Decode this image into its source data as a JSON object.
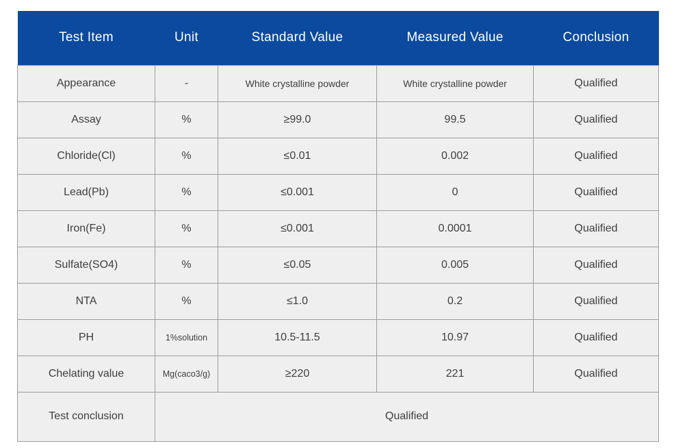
{
  "table": {
    "headers": {
      "item": "Test Item",
      "unit": "Unit",
      "standard": "Standard Value",
      "measured": "Measured Value",
      "conclusion": "Conclusion"
    },
    "rows": [
      {
        "item": "Appearance",
        "unit": "-",
        "standard": "White crystalline powder",
        "measured": "White crystalline powder",
        "conclusion": "Qualified"
      },
      {
        "item": "Assay",
        "unit": "%",
        "standard": "≥99.0",
        "measured": "99.5",
        "conclusion": "Qualified"
      },
      {
        "item": "Chloride(Cl)",
        "unit": "%",
        "standard": "≤0.01",
        "measured": "0.002",
        "conclusion": "Qualified"
      },
      {
        "item": "Lead(Pb)",
        "unit": "%",
        "standard": "≤0.001",
        "measured": "0",
        "conclusion": "Qualified"
      },
      {
        "item": "Iron(Fe)",
        "unit": "%",
        "standard": "≤0.001",
        "measured": "0.0001",
        "conclusion": "Qualified"
      },
      {
        "item": "Sulfate(SO4)",
        "unit": "%",
        "standard": "≤0.05",
        "measured": "0.005",
        "conclusion": "Qualified"
      },
      {
        "item": "NTA",
        "unit": "%",
        "standard": "≤1.0",
        "measured": "0.2",
        "conclusion": "Qualified"
      },
      {
        "item": "PH",
        "unit": "1%solution",
        "standard": "10.5-11.5",
        "measured": "10.97",
        "conclusion": "Qualified"
      },
      {
        "item": "Chelating value",
        "unit": "Mg(caco3/g)",
        "standard": "≥220",
        "measured": "221",
        "conclusion": "Qualified"
      }
    ],
    "footer": {
      "label": "Test conclusion",
      "value": "Qualified"
    }
  },
  "colors": {
    "header_bg": "#0b4a9e",
    "header_text": "#ffffff",
    "row_bg": "#efefef",
    "border": "#9c9c9c",
    "body_text": "#3e3e3e"
  }
}
